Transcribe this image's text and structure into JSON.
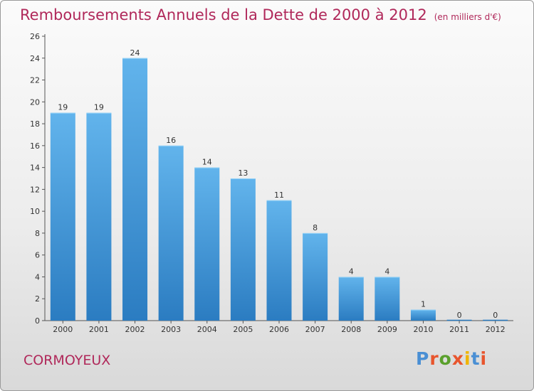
{
  "title": "Remboursements Annuels de la Dette de 2000 à 2012",
  "unit": "(en milliers d'€)",
  "commune": "CORMOYEUX",
  "logo": {
    "text": "Proxiti",
    "letter_colors": [
      "#4a8fd4",
      "#e8552d",
      "#5aa02c",
      "#e8552d",
      "#f0b400",
      "#4a8fd4",
      "#e8552d"
    ]
  },
  "colors": {
    "title": "#b0285a",
    "bar_top": "#62b4ec",
    "bar_bottom": "#2b7cc1"
  },
  "chart_data": {
    "type": "bar",
    "categories": [
      "2000",
      "2001",
      "2002",
      "2003",
      "2004",
      "2005",
      "2006",
      "2007",
      "2008",
      "2009",
      "2010",
      "2011",
      "2012"
    ],
    "values": [
      19,
      19,
      24,
      16,
      14,
      13,
      11,
      8,
      4,
      4,
      1,
      0,
      0
    ],
    "ylim": [
      0,
      26
    ],
    "yticks": [
      0,
      2,
      4,
      6,
      8,
      10,
      12,
      14,
      16,
      18,
      20,
      22,
      24,
      26
    ],
    "xlabel": "",
    "ylabel": "",
    "grid": false,
    "data_labels": true
  }
}
